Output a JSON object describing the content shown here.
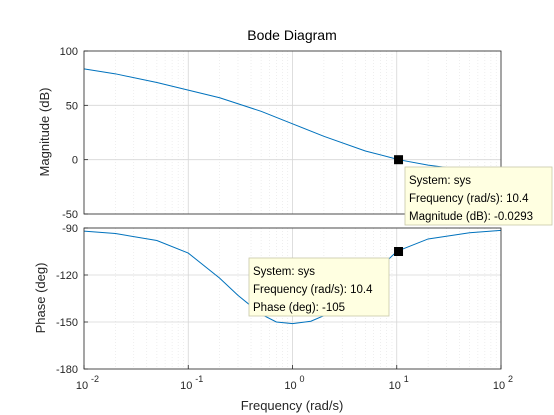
{
  "chart_data": {
    "type": "line",
    "title": "Bode Diagram",
    "xlabel": "Frequency  (rad/s)",
    "x_scale": "log",
    "xlim": [
      0.01,
      100
    ],
    "x_ticks": [
      {
        "value": 0.01,
        "base": "10",
        "exp": "-2"
      },
      {
        "value": 0.1,
        "base": "10",
        "exp": "-1"
      },
      {
        "value": 1,
        "base": "10",
        "exp": "0"
      },
      {
        "value": 10,
        "base": "10",
        "exp": "1"
      },
      {
        "value": 100,
        "base": "10",
        "exp": "2"
      }
    ],
    "grid": true,
    "series_color": "#0072bd",
    "panels": [
      {
        "key": "magnitude",
        "ylabel": "Magnitude (dB)",
        "ylim": [
          -50,
          100
        ],
        "yticks": [
          100,
          50,
          0,
          -50
        ],
        "x": [
          0.01,
          0.02,
          0.05,
          0.1,
          0.2,
          0.5,
          1,
          2,
          5,
          10,
          10.4,
          20,
          50,
          100
        ],
        "y": [
          83.5,
          79,
          71,
          64,
          57,
          44.5,
          33,
          21.5,
          8,
          0.5,
          -0.0293,
          -5,
          -10,
          -13.5
        ]
      },
      {
        "key": "phase",
        "ylabel": "Phase (deg)",
        "ylim": [
          -180,
          -90
        ],
        "yticks": [
          -90,
          -120,
          -150,
          -180
        ],
        "x": [
          0.01,
          0.02,
          0.05,
          0.1,
          0.2,
          0.3,
          0.5,
          0.7,
          1,
          1.5,
          2,
          3,
          5,
          10,
          10.4,
          20,
          50,
          100
        ],
        "y": [
          -92,
          -93.5,
          -98,
          -106,
          -122,
          -133,
          -145,
          -150,
          -151,
          -149.5,
          -146,
          -138,
          -124,
          -105,
          -104.5,
          -97,
          -93,
          -91.5
        ]
      }
    ],
    "datatips": [
      {
        "key": "magnitude",
        "x": 10.4,
        "y": -0.0293,
        "lines": [
          "System: sys",
          "Frequency (rad/s): 10.4",
          "Magnitude (dB): -0.0293"
        ]
      },
      {
        "key": "phase",
        "x": 10.4,
        "y": -105,
        "lines": [
          "System: sys",
          "Frequency (rad/s): 10.4",
          "Phase (deg): -105"
        ]
      }
    ]
  }
}
